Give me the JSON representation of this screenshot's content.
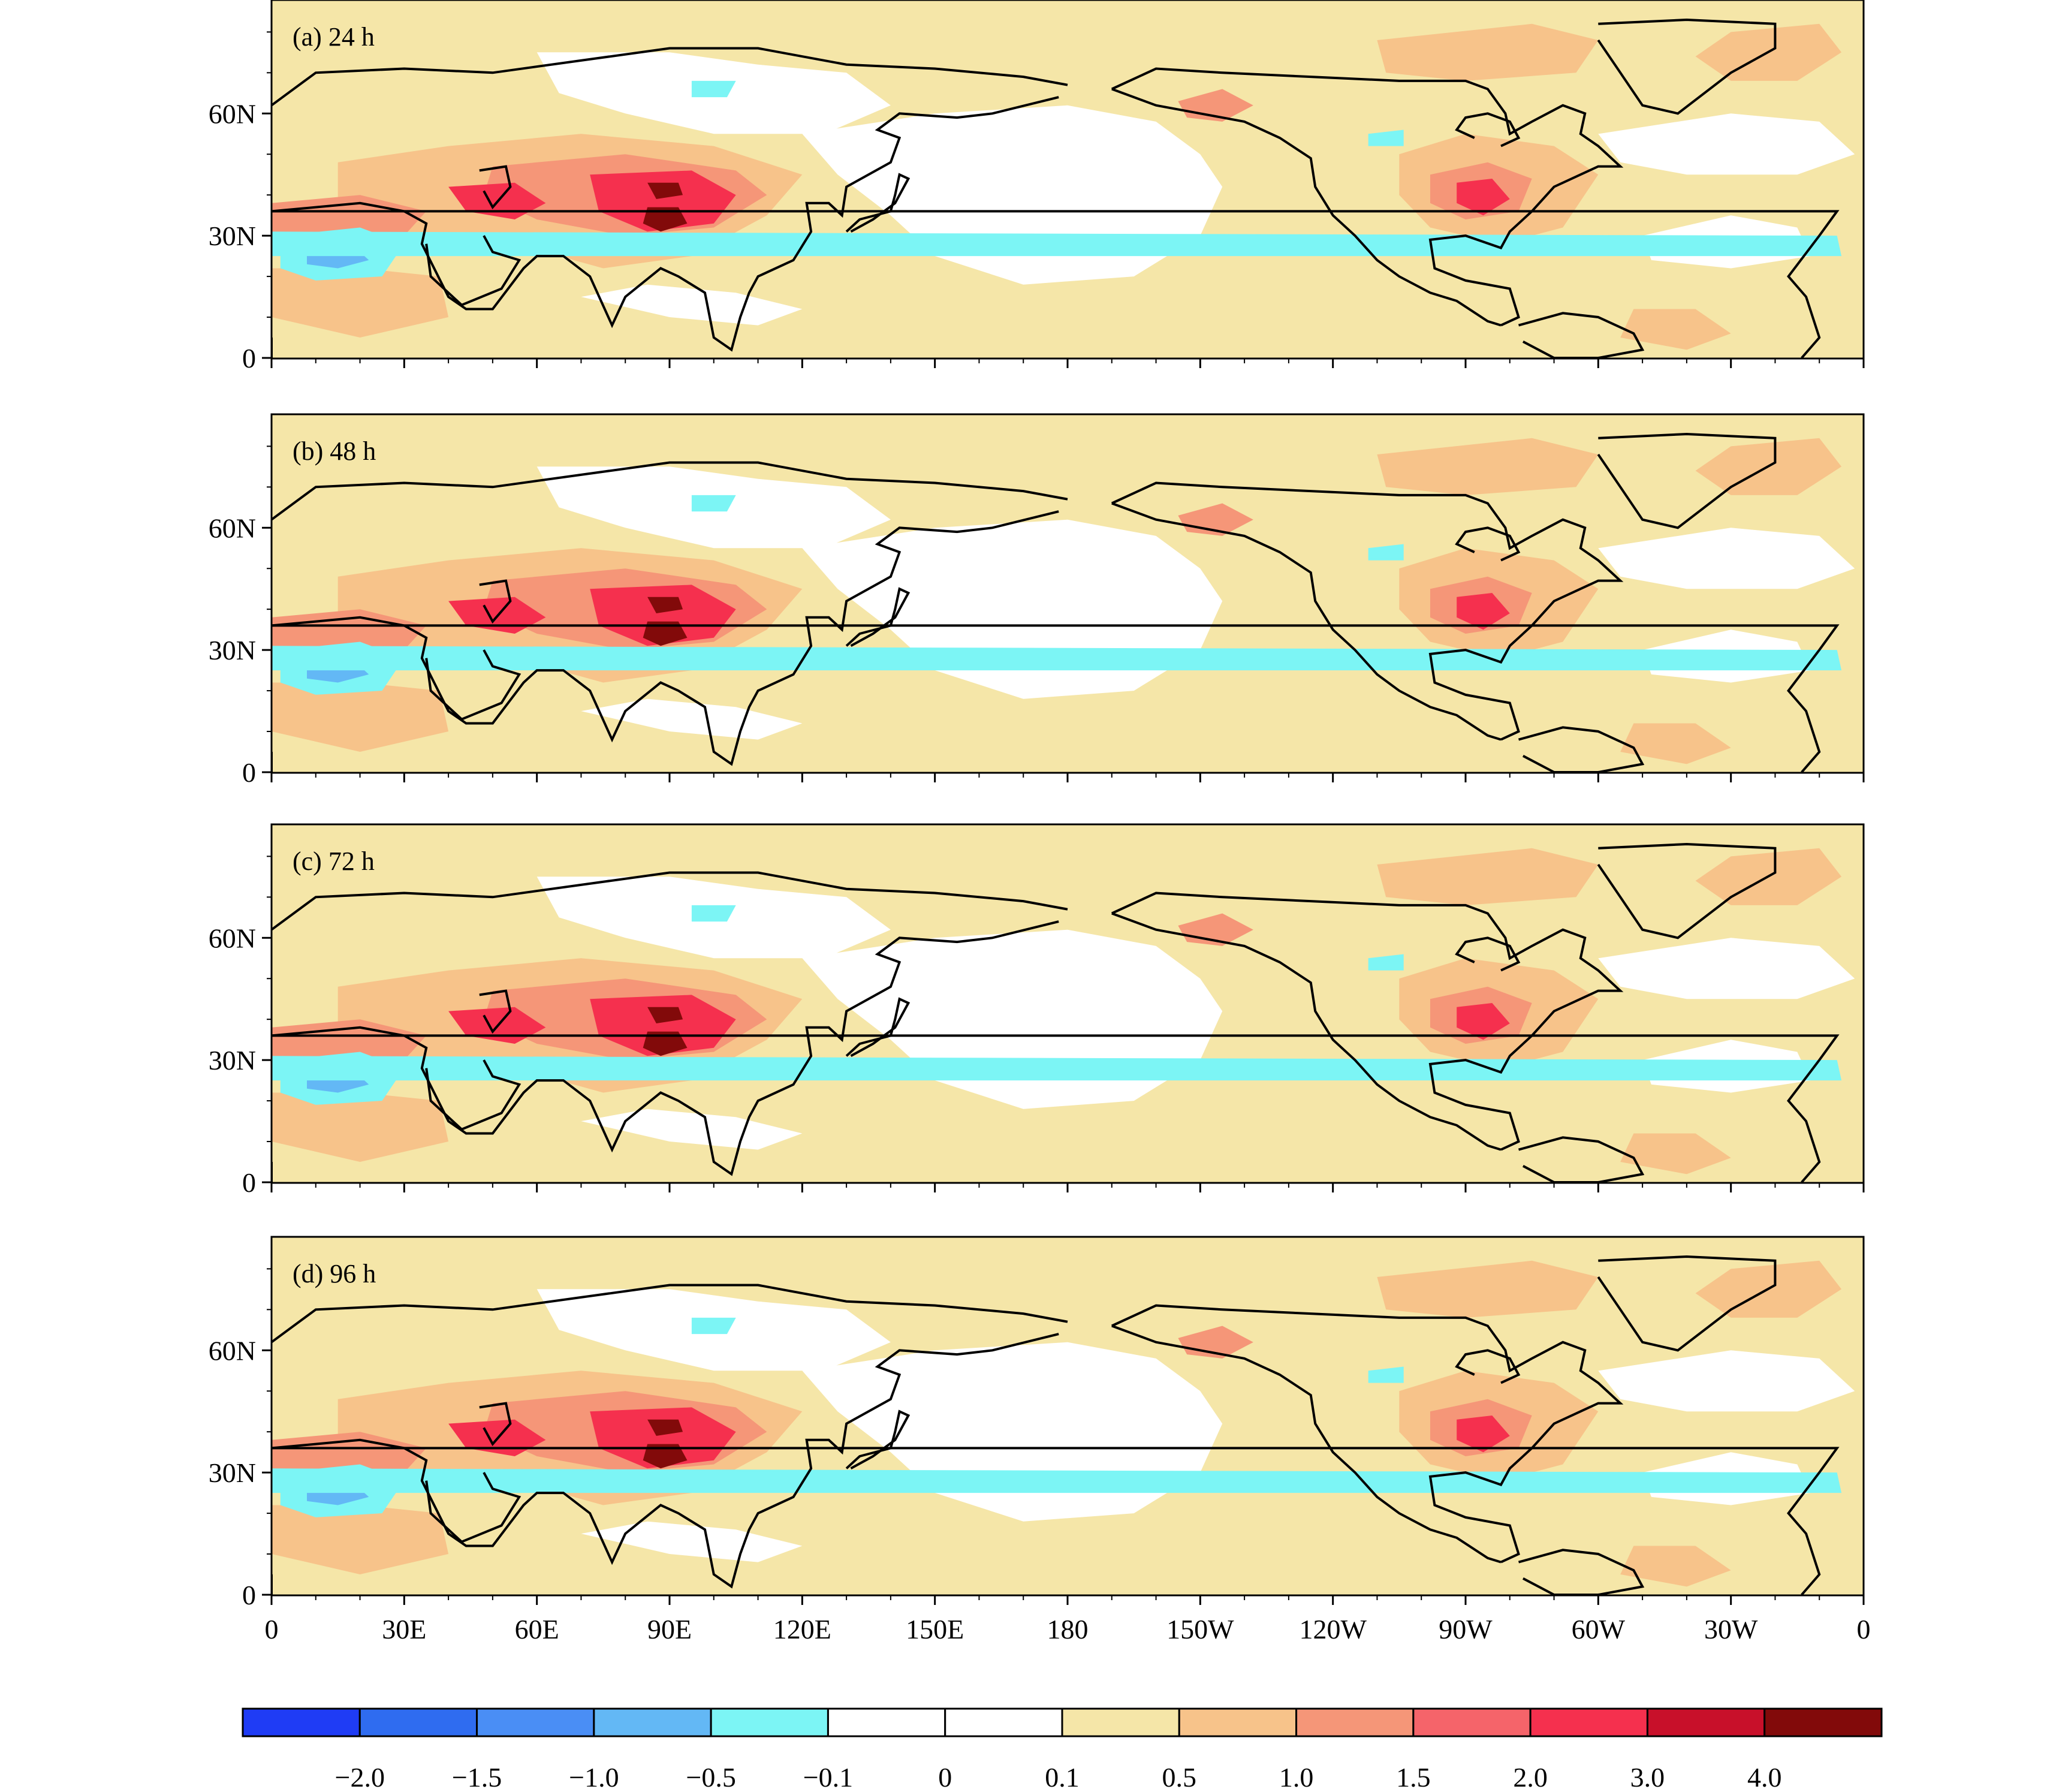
{
  "figure": {
    "panels": [
      {
        "label": "(a) 24 h"
      },
      {
        "label": "(b) 48 h"
      },
      {
        "label": "(c) 72 h"
      },
      {
        "label": "(d) 96 h"
      }
    ],
    "lat_ticks": [
      "0",
      "30N",
      "60N"
    ],
    "lon_ticks": [
      "0",
      "30E",
      "60E",
      "90E",
      "120E",
      "150E",
      "180",
      "150W",
      "120W",
      "90W",
      "60W",
      "30W",
      "0"
    ]
  },
  "colorbar": {
    "colors": [
      "#1f3cf5",
      "#2f6cf0",
      "#4a8ef5",
      "#63b8f5",
      "#7cf5f5",
      "#ffffff",
      "#ffffff",
      "#f5e6a8",
      "#f7c38a",
      "#f59678",
      "#f5646a",
      "#f5304e",
      "#c8102a",
      "#820a0a"
    ],
    "labels": [
      "−2.0",
      "−1.5",
      "−1.0",
      "−0.5",
      "−0.1",
      "0",
      "0.1",
      "0.5",
      "1.0",
      "1.5",
      "2.0",
      "3.0",
      "4.0"
    ]
  },
  "map": {
    "ocean_fill": "#f5e6a8",
    "light_fill": "#f7c38a",
    "mid_fill": "#f59678",
    "strong_fill": "#f5304e",
    "max_fill": "#820a0a",
    "neg_fill": "#7cf5f5",
    "neg2_fill": "#63b8f5",
    "coast_color": "#000000"
  }
}
